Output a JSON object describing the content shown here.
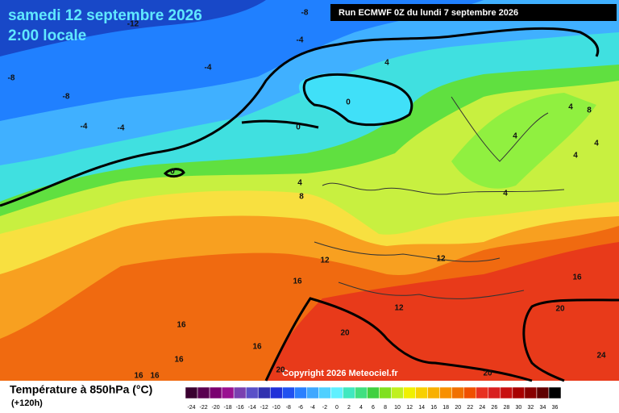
{
  "header": {
    "date": "samedi 12 septembre 2026",
    "time": "2:00 locale",
    "run": "Run ECMWF 0Z du lundi 7 septembre 2026",
    "copyright": "Copyright 2026 Meteociel.fr"
  },
  "contour_labels": [
    -8,
    -12,
    -4,
    -8,
    -4,
    4,
    -8,
    0,
    8,
    4,
    -4,
    -4,
    0,
    4,
    4,
    4,
    0,
    4,
    4,
    8,
    12,
    12,
    16,
    16,
    12,
    20,
    16,
    20,
    16,
    16,
    24,
    16,
    16,
    20,
    20
  ],
  "legend": {
    "title": "Température à 850hPa (°C)",
    "subtitle": "(+120h)",
    "levels": [
      -24,
      -22,
      -20,
      -18,
      -16,
      -14,
      -12,
      -10,
      -8,
      -6,
      -4,
      -2,
      0,
      2,
      4,
      6,
      8,
      10,
      12,
      14,
      16,
      18,
      20,
      22,
      24,
      26,
      28,
      30,
      32,
      34,
      36
    ],
    "colors": [
      "#3a0030",
      "#5a0050",
      "#7a0070",
      "#9a1090",
      "#7a40b0",
      "#5a50c8",
      "#3030b0",
      "#2030d8",
      "#2050f0",
      "#2a80ff",
      "#40a8ff",
      "#50d0ff",
      "#60f0ff",
      "#40e8c0",
      "#40e080",
      "#40d040",
      "#80e020",
      "#c0f020",
      "#f0f000",
      "#f8d000",
      "#f8b000",
      "#f89000",
      "#f07000",
      "#f05000",
      "#e83020",
      "#d82020",
      "#c81010",
      "#a80000",
      "#880000",
      "#600000",
      "#000000"
    ]
  }
}
